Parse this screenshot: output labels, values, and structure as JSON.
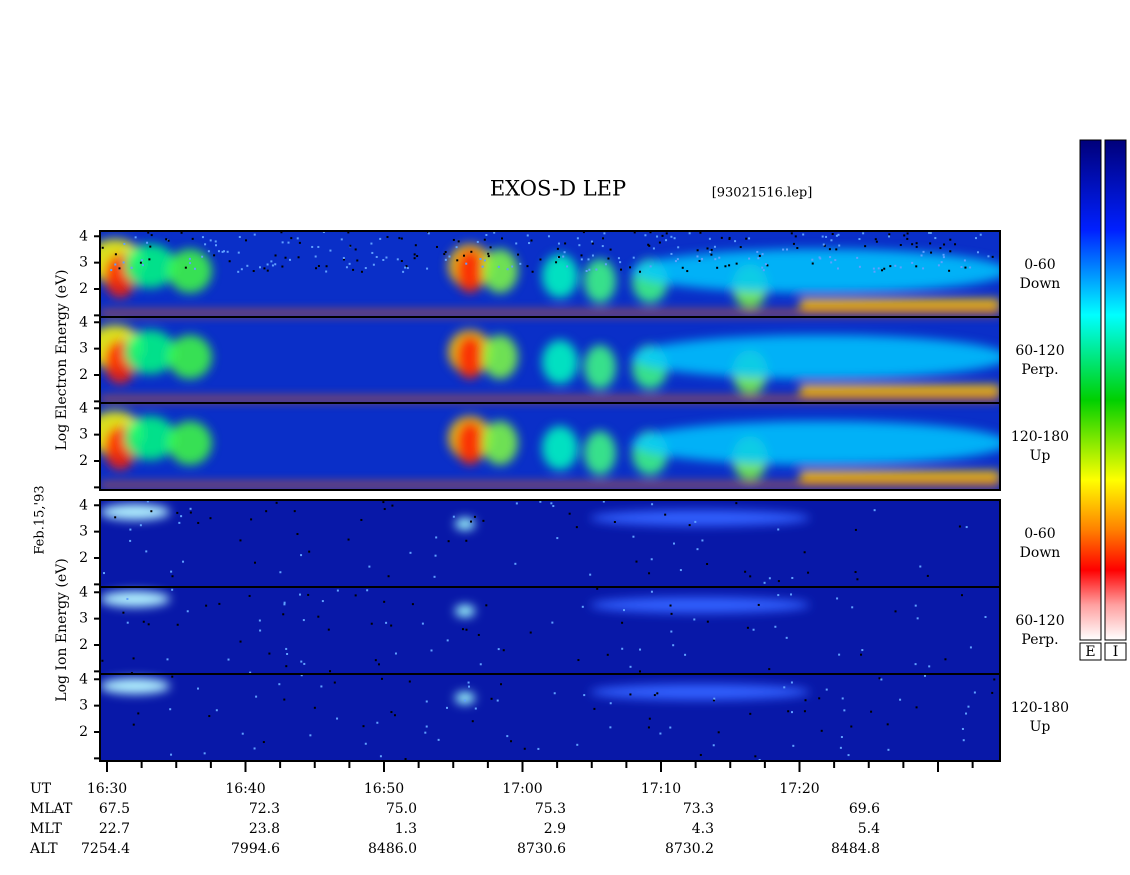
{
  "title": "EXOS-D LEP",
  "file": "[93021516.lep]",
  "date": "Feb.15,'93",
  "electron_axis_label": "Log Electron Energy (eV)",
  "ion_axis_label": "Log Ion Energy (eV)",
  "ylim": [
    0.9,
    4.2
  ],
  "yticks": [
    {
      "value": 1,
      "label": ""
    },
    2,
    3,
    4
  ],
  "panels": [
    {
      "angle": "0-60",
      "direction": "Down"
    },
    {
      "angle": "60-120",
      "direction": "Perp."
    },
    {
      "angle": "120-180",
      "direction": "Up"
    },
    {
      "angle": "0-60",
      "direction": "Down"
    },
    {
      "angle": "60-120",
      "direction": "Perp."
    },
    {
      "angle": "120-180",
      "direction": "Up"
    }
  ],
  "time_table": [
    {
      "name": "UT",
      "values": [
        "16:30",
        "16:40",
        "16:50",
        "17:00",
        "17:10",
        "17:20"
      ]
    },
    {
      "name": "MLAT",
      "values": [
        "67.5",
        "72.3",
        "75.0",
        "75.3",
        "73.3",
        "69.6"
      ]
    },
    {
      "name": "MLT",
      "values": [
        "22.7",
        "23.8",
        "1.3",
        "2.9",
        "4.3",
        "5.4"
      ]
    },
    {
      "name": "ALT",
      "values": [
        "7254.4",
        "7994.6",
        "8486.0",
        "8730.6",
        "8730.2",
        "8484.8"
      ]
    }
  ],
  "colorbar_labels": [
    "E",
    "I"
  ]
}
